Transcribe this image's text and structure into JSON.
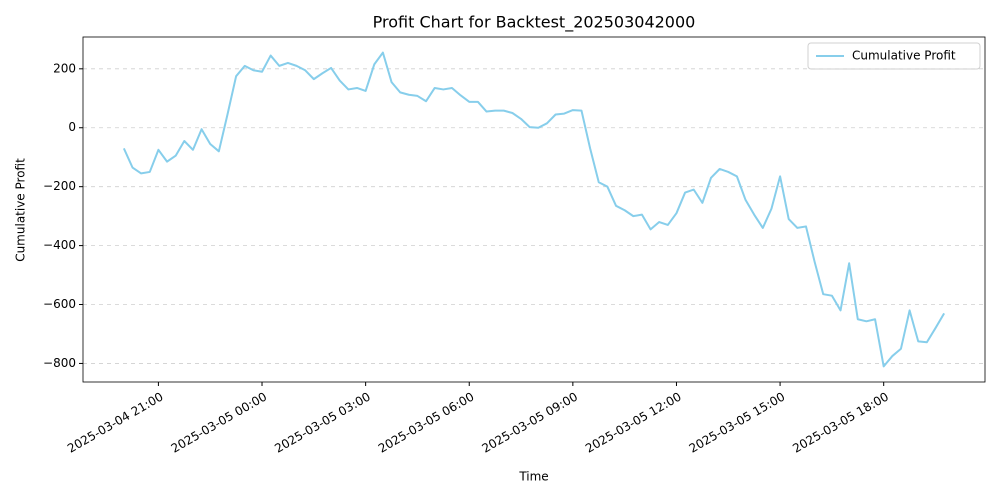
{
  "chart_data": {
    "type": "line",
    "title": "Profit Chart for Backtest_202503042000",
    "x_label": "Time",
    "y_label": "Cumulative Profit",
    "x": [
      "2025-03-04 20:00",
      "2025-03-04 20:15",
      "2025-03-04 20:30",
      "2025-03-04 20:45",
      "2025-03-04 21:00",
      "2025-03-04 21:15",
      "2025-03-04 21:30",
      "2025-03-04 21:45",
      "2025-03-04 22:00",
      "2025-03-04 22:15",
      "2025-03-04 22:30",
      "2025-03-04 22:45",
      "2025-03-04 23:00",
      "2025-03-04 23:15",
      "2025-03-04 23:30",
      "2025-03-04 23:45",
      "2025-03-05 00:00",
      "2025-03-05 00:15",
      "2025-03-05 00:30",
      "2025-03-05 00:45",
      "2025-03-05 01:00",
      "2025-03-05 01:15",
      "2025-03-05 01:30",
      "2025-03-05 01:45",
      "2025-03-05 02:00",
      "2025-03-05 02:15",
      "2025-03-05 02:30",
      "2025-03-05 02:45",
      "2025-03-05 03:00",
      "2025-03-05 03:15",
      "2025-03-05 03:30",
      "2025-03-05 03:45",
      "2025-03-05 04:00",
      "2025-03-05 04:15",
      "2025-03-05 04:30",
      "2025-03-05 04:45",
      "2025-03-05 05:00",
      "2025-03-05 05:15",
      "2025-03-05 05:30",
      "2025-03-05 05:45",
      "2025-03-05 06:00",
      "2025-03-05 06:15",
      "2025-03-05 06:30",
      "2025-03-05 06:45",
      "2025-03-05 07:00",
      "2025-03-05 07:15",
      "2025-03-05 07:30",
      "2025-03-05 07:45",
      "2025-03-05 08:00",
      "2025-03-05 08:15",
      "2025-03-05 08:30",
      "2025-03-05 08:45",
      "2025-03-05 09:00",
      "2025-03-05 09:15",
      "2025-03-05 09:30",
      "2025-03-05 09:45",
      "2025-03-05 10:00",
      "2025-03-05 10:15",
      "2025-03-05 10:30",
      "2025-03-05 10:45",
      "2025-03-05 11:00",
      "2025-03-05 11:15",
      "2025-03-05 11:30",
      "2025-03-05 11:45",
      "2025-03-05 12:00",
      "2025-03-05 12:15",
      "2025-03-05 12:30",
      "2025-03-05 12:45",
      "2025-03-05 13:00",
      "2025-03-05 13:15",
      "2025-03-05 13:30",
      "2025-03-05 13:45",
      "2025-03-05 14:00",
      "2025-03-05 14:15",
      "2025-03-05 14:30",
      "2025-03-05 14:45",
      "2025-03-05 15:00",
      "2025-03-05 15:15",
      "2025-03-05 15:30",
      "2025-03-05 15:45",
      "2025-03-05 16:00",
      "2025-03-05 16:15",
      "2025-03-05 16:30",
      "2025-03-05 16:45",
      "2025-03-05 17:00",
      "2025-03-05 17:15",
      "2025-03-05 17:30",
      "2025-03-05 17:45",
      "2025-03-05 18:00",
      "2025-03-05 18:15",
      "2025-03-05 18:30",
      "2025-03-05 18:45",
      "2025-03-05 19:00",
      "2025-03-05 19:15",
      "2025-03-05 19:30",
      "2025-03-05 19:45"
    ],
    "series": [
      {
        "name": "Cumulative Profit",
        "color": "#87ceeb",
        "values": [
          -70,
          -135,
          -155,
          -150,
          -75,
          -115,
          -95,
          -45,
          -75,
          -5,
          -55,
          -80,
          45,
          175,
          210,
          195,
          190,
          245,
          210,
          220,
          210,
          195,
          165,
          185,
          203,
          160,
          130,
          135,
          125,
          215,
          255,
          155,
          120,
          112,
          108,
          90,
          135,
          130,
          135,
          110,
          88,
          88,
          55,
          58,
          58,
          50,
          30,
          2,
          0,
          15,
          45,
          48,
          60,
          58,
          -70,
          -185,
          -200,
          -265,
          -280,
          -300,
          -295,
          -345,
          -320,
          -330,
          -290,
          -220,
          -210,
          -255,
          -170,
          -140,
          -150,
          -165,
          -245,
          -295,
          -340,
          -275,
          -165,
          -310,
          -340,
          -335,
          -455,
          -565,
          -570,
          -620,
          -460,
          -650,
          -657,
          -650,
          -810,
          -775,
          -750,
          -620,
          -725,
          -728,
          -680,
          -630
        ]
      }
    ],
    "xlim": [
      "2025-03-04 18:49",
      "2025-03-05 20:56"
    ],
    "xticks": [
      "2025-03-04 21:00",
      "2025-03-05 00:00",
      "2025-03-05 03:00",
      "2025-03-05 06:00",
      "2025-03-05 09:00",
      "2025-03-05 12:00",
      "2025-03-05 15:00",
      "2025-03-05 18:00"
    ],
    "ylim": [
      -863,
      308
    ],
    "yticks": [
      {
        "value": -800,
        "label": "−800"
      },
      {
        "value": -600,
        "label": "−600"
      },
      {
        "value": -400,
        "label": "−400"
      },
      {
        "value": -200,
        "label": "−200"
      },
      0,
      200
    ],
    "grid": true,
    "legend": "upper right"
  }
}
